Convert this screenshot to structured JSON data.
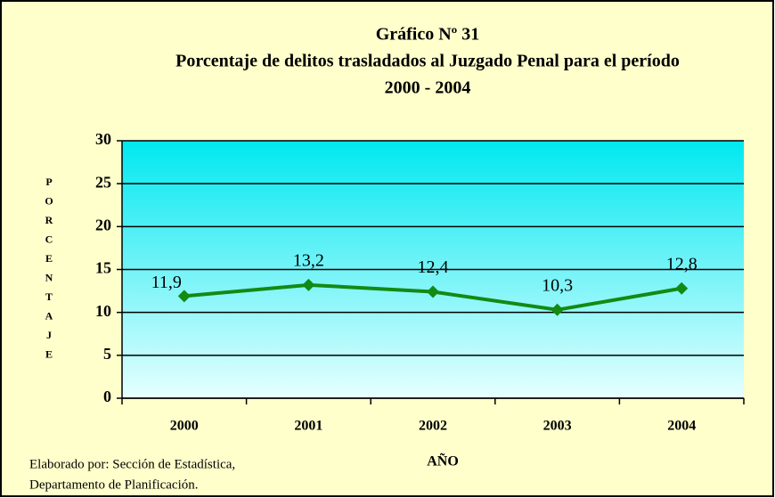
{
  "chart_data": {
    "type": "line",
    "title": "Gráfico Nº 31",
    "subtitle": [
      "Porcentaje de delitos trasladados al Juzgado Penal para el período",
      "2000 - 2004"
    ],
    "x_label": "AÑO",
    "y_label": "PORCENTAJE",
    "footer": [
      "Elaborado por: Sección de Estadística,",
      "Departamento de Planificación."
    ],
    "categories": [
      "2000",
      "2001",
      "2002",
      "2003",
      "2004"
    ],
    "series": [
      {
        "name": "Porcentaje",
        "color": "#138a13",
        "values": [
          11.9,
          13.2,
          12.4,
          10.3,
          12.8
        ],
        "value_labels": [
          "11,9",
          "13,2",
          "12,4",
          "10,3",
          "12,8"
        ]
      }
    ],
    "ylim": [
      0,
      30
    ],
    "yticks": [
      0,
      5,
      10,
      15,
      20,
      25,
      30
    ],
    "grid": true
  }
}
